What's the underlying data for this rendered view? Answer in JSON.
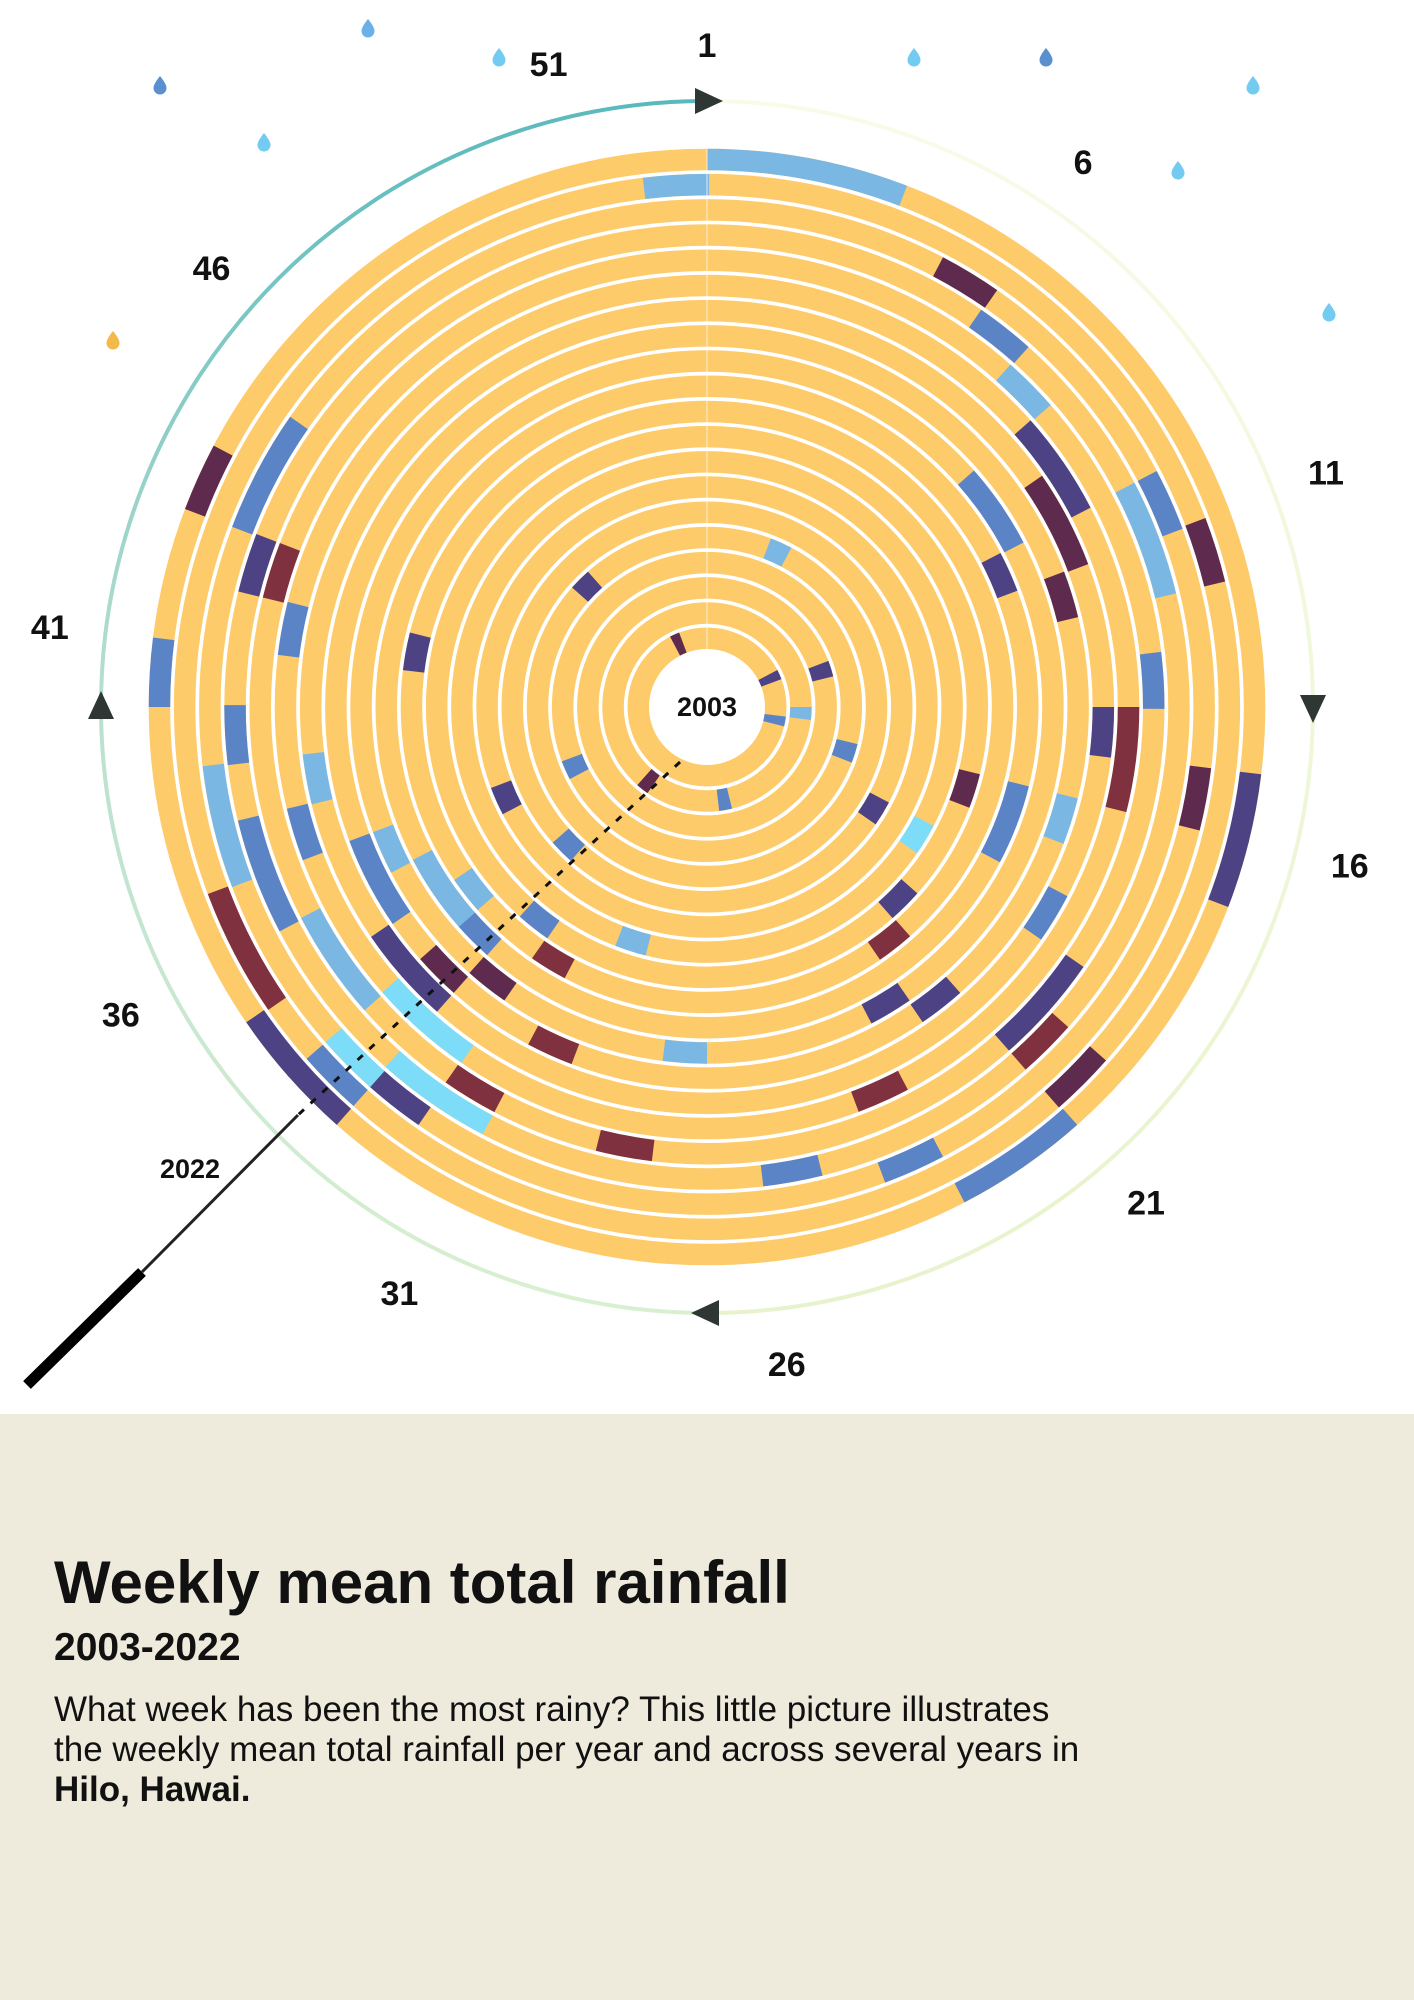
{
  "caption": {
    "title": "Weekly mean total rainfall",
    "subtitle": "2003-2022",
    "description_line1": "What week has been the most rainy? This little picture illustrates",
    "description_line2": "the weekly mean total rainfall per year and across several years in",
    "description_place": "Hilo, Hawai."
  },
  "colors": {
    "caption_background": "#eeebdd",
    "dry": "#fecb6a",
    "light_rain": "#7ab8e3",
    "moderate_rain": "#5a84c6",
    "heavy_rain": "#4d4384",
    "very_heavy_rain": "#5e2b4f",
    "extreme_rain": "#7f313f",
    "bright_rain": "#7ddcf7",
    "outer_arc_start": "#5ab9bd",
    "outer_arc_end": "#f3f8dc"
  },
  "chart_data": {
    "type": "heatmap",
    "description_units": "weekly mean total rainfall, radial heatmap: rings = years (2003 inner to 2022 outer), angle = week of year (1 at top, clockwise)",
    "years": [
      2003,
      2004,
      2005,
      2006,
      2007,
      2008,
      2009,
      2010,
      2011,
      2012,
      2013,
      2014,
      2015,
      2016,
      2017,
      2018,
      2019,
      2020,
      2021,
      2022
    ],
    "weeks": 52,
    "inner_year_label": "2003",
    "outer_year_label": "2022",
    "week_tick_labels": [
      "1",
      "6",
      "11",
      "16",
      "21",
      "26",
      "31",
      "36",
      "41",
      "46",
      "51"
    ],
    "week_tick_values": [
      1,
      6,
      11,
      16,
      21,
      26,
      31,
      36,
      41,
      46,
      51
    ],
    "default_category": "dry",
    "wet_cells": [
      {
        "year": 2022,
        "weeks": [
          1,
          2
        ],
        "category": "light_rain"
      },
      {
        "year": 2022,
        "weeks": [
          3
        ],
        "category": "light_rain"
      },
      {
        "year": 2021,
        "weeks": [
          52
        ],
        "category": "light_rain"
      },
      {
        "year": 2022,
        "weeks": [
          15,
          16
        ],
        "category": "heavy_rain"
      },
      {
        "year": 2022,
        "weeks": [
          21,
          22
        ],
        "category": "moderate_rain"
      },
      {
        "year": 2022,
        "weeks": [
          33,
          34
        ],
        "category": "heavy_rain"
      },
      {
        "year": 2022,
        "weeks": [
          40
        ],
        "category": "moderate_rain"
      },
      {
        "year": 2022,
        "weeks": [
          43
        ],
        "category": "very_heavy_rain"
      },
      {
        "year": 2021,
        "weeks": [
          35,
          36
        ],
        "category": "extreme_rain"
      },
      {
        "year": 2021,
        "weeks": [
          11
        ],
        "category": "very_heavy_rain"
      },
      {
        "year": 2021,
        "weeks": [
          20
        ],
        "category": "very_heavy_rain"
      },
      {
        "year": 2021,
        "weeks": [
          33
        ],
        "category": "moderate_rain"
      },
      {
        "year": 2020,
        "weeks": [
          5
        ],
        "category": "very_heavy_rain"
      },
      {
        "year": 2020,
        "weeks": [
          10
        ],
        "category": "moderate_rain"
      },
      {
        "year": 2020,
        "weeks": [
          15
        ],
        "category": "very_heavy_rain"
      },
      {
        "year": 2020,
        "weeks": [
          23
        ],
        "category": "moderate_rain"
      },
      {
        "year": 2020,
        "weeks": [
          32
        ],
        "category": "heavy_rain"
      },
      {
        "year": 2020,
        "weeks": [
          33
        ],
        "category": "bright_rain"
      },
      {
        "year": 2020,
        "weeks": [
          37,
          38
        ],
        "category": "light_rain"
      },
      {
        "year": 2020,
        "weeks": [
          43,
          44
        ],
        "category": "moderate_rain"
      },
      {
        "year": 2019,
        "weeks": [
          6
        ],
        "category": "moderate_rain"
      },
      {
        "year": 2019,
        "weeks": [
          10,
          11
        ],
        "category": "light_rain"
      },
      {
        "year": 2019,
        "weeks": [
          20
        ],
        "category": "extreme_rain"
      },
      {
        "year": 2019,
        "weeks": [
          25
        ],
        "category": "moderate_rain"
      },
      {
        "year": 2019,
        "weeks": [
          31,
          32
        ],
        "category": "bright_rain"
      },
      {
        "year": 2019,
        "weeks": [
          36,
          37
        ],
        "category": "moderate_rain"
      },
      {
        "year": 2019,
        "weeks": [
          39
        ],
        "category": "moderate_rain"
      },
      {
        "year": 2019,
        "weeks": [
          42
        ],
        "category": "heavy_rain"
      },
      {
        "year": 2018,
        "weeks": [
          7
        ],
        "category": "light_rain"
      },
      {
        "year": 2018,
        "weeks": [
          13
        ],
        "category": "moderate_rain"
      },
      {
        "year": 2018,
        "weeks": [
          19,
          20
        ],
        "category": "heavy_rain"
      },
      {
        "year": 2018,
        "weeks": [
          28
        ],
        "category": "extreme_rain"
      },
      {
        "year": 2018,
        "weeks": [
          31
        ],
        "category": "extreme_rain"
      },
      {
        "year": 2018,
        "weeks": [
          34,
          35
        ],
        "category": "light_rain"
      },
      {
        "year": 2018,
        "weeks": [
          42
        ],
        "category": "extreme_rain"
      },
      {
        "year": 2017,
        "weeks": [
          8,
          9
        ],
        "category": "heavy_rain"
      },
      {
        "year": 2017,
        "weeks": [
          14,
          15
        ],
        "category": "extreme_rain"
      },
      {
        "year": 2017,
        "weeks": [
          23
        ],
        "category": "extreme_rain"
      },
      {
        "year": 2017,
        "weeks": [
          32,
          33
        ],
        "category": "bright_rain"
      },
      {
        "year": 2017,
        "weeks": [
          37
        ],
        "category": "moderate_rain"
      },
      {
        "year": 2017,
        "weeks": [
          41
        ],
        "category": "moderate_rain"
      },
      {
        "year": 2016,
        "weeks": [
          9,
          10
        ],
        "category": "very_heavy_rain"
      },
      {
        "year": 2016,
        "weeks": [
          14
        ],
        "category": "heavy_rain"
      },
      {
        "year": 2016,
        "weeks": [
          18
        ],
        "category": "moderate_rain"
      },
      {
        "year": 2016,
        "weeks": [
          33,
          34
        ],
        "category": "heavy_rain"
      },
      {
        "year": 2016,
        "weeks": [
          38
        ],
        "category": "light_rain"
      },
      {
        "year": 2015,
        "weeks": [
          11
        ],
        "category": "very_heavy_rain"
      },
      {
        "year": 2015,
        "weeks": [
          16
        ],
        "category": "light_rain"
      },
      {
        "year": 2015,
        "weeks": [
          21
        ],
        "category": "heavy_rain"
      },
      {
        "year": 2015,
        "weeks": [
          30
        ],
        "category": "extreme_rain"
      },
      {
        "year": 2015,
        "weeks": [
          33
        ],
        "category": "very_heavy_rain"
      },
      {
        "year": 2015,
        "weeks": [
          35,
          36
        ],
        "category": "moderate_rain"
      },
      {
        "year": 2014,
        "weeks": [
          8,
          9
        ],
        "category": "moderate_rain"
      },
      {
        "year": 2014,
        "weeks": [
          22
        ],
        "category": "heavy_rain"
      },
      {
        "year": 2014,
        "weeks": [
          27
        ],
        "category": "light_rain"
      },
      {
        "year": 2014,
        "weeks": [
          32
        ],
        "category": "very_heavy_rain"
      },
      {
        "year": 2014,
        "weeks": [
          36
        ],
        "category": "light_rain"
      },
      {
        "year": 2013,
        "weeks": [
          10
        ],
        "category": "heavy_rain"
      },
      {
        "year": 2013,
        "weeks": [
          16,
          17
        ],
        "category": "moderate_rain"
      },
      {
        "year": 2013,
        "weeks": [
          33
        ],
        "category": "moderate_rain"
      },
      {
        "year": 2013,
        "weeks": [
          34,
          35
        ],
        "category": "light_rain"
      },
      {
        "year": 2012,
        "weeks": [
          21
        ],
        "category": "extreme_rain"
      },
      {
        "year": 2012,
        "weeks": [
          31
        ],
        "category": "extreme_rain"
      },
      {
        "year": 2012,
        "weeks": [
          34
        ],
        "category": "light_rain"
      },
      {
        "year": 2012,
        "weeks": [
          41
        ],
        "category": "heavy_rain"
      },
      {
        "year": 2011,
        "weeks": [
          16
        ],
        "category": "very_heavy_rain"
      },
      {
        "year": 2011,
        "weeks": [
          20
        ],
        "category": "heavy_rain"
      },
      {
        "year": 2011,
        "weeks": [
          32
        ],
        "category": "moderate_rain"
      },
      {
        "year": 2010,
        "weeks": [
          18
        ],
        "category": "bright_rain"
      },
      {
        "year": 2010,
        "weeks": [
          29
        ],
        "category": "light_rain"
      },
      {
        "year": 2009,
        "weeks": [
          36
        ],
        "category": "heavy_rain"
      },
      {
        "year": 2008,
        "weeks": [
          18
        ],
        "category": "heavy_rain"
      },
      {
        "year": 2008,
        "weeks": [
          33
        ],
        "category": "moderate_rain"
      },
      {
        "year": 2007,
        "weeks": [
          4
        ],
        "category": "light_rain"
      },
      {
        "year": 2007,
        "weeks": [
          46
        ],
        "category": "heavy_rain"
      },
      {
        "year": 2006,
        "weeks": [
          16
        ],
        "category": "moderate_rain"
      },
      {
        "year": 2006,
        "weeks": [
          36
        ],
        "category": "moderate_rain"
      },
      {
        "year": 2005,
        "weeks": [
          11
        ],
        "category": "heavy_rain"
      },
      {
        "year": 2004,
        "weeks": [
          14
        ],
        "category": "light_rain"
      },
      {
        "year": 2004,
        "weeks": [
          25
        ],
        "category": "moderate_rain"
      },
      {
        "year": 2004,
        "weeks": [
          32
        ],
        "category": "very_heavy_rain"
      },
      {
        "year": 2003,
        "weeks": [
          10
        ],
        "category": "heavy_rain"
      },
      {
        "year": 2003,
        "weeks": [
          15
        ],
        "category": "moderate_rain"
      },
      {
        "year": 2003,
        "weeks": [
          49
        ],
        "category": "very_heavy_rain"
      }
    ],
    "decorations": {
      "raindrop_colors": [
        "#5a8fd0",
        "#6cb0e8",
        "#74cbf2",
        "#74cbf2",
        "#5a8fd0",
        "#74cbf2",
        "#74cbf2",
        "#74cbf2",
        "#74cbf2",
        "#f3b94a"
      ],
      "has_magnifier": true
    }
  }
}
